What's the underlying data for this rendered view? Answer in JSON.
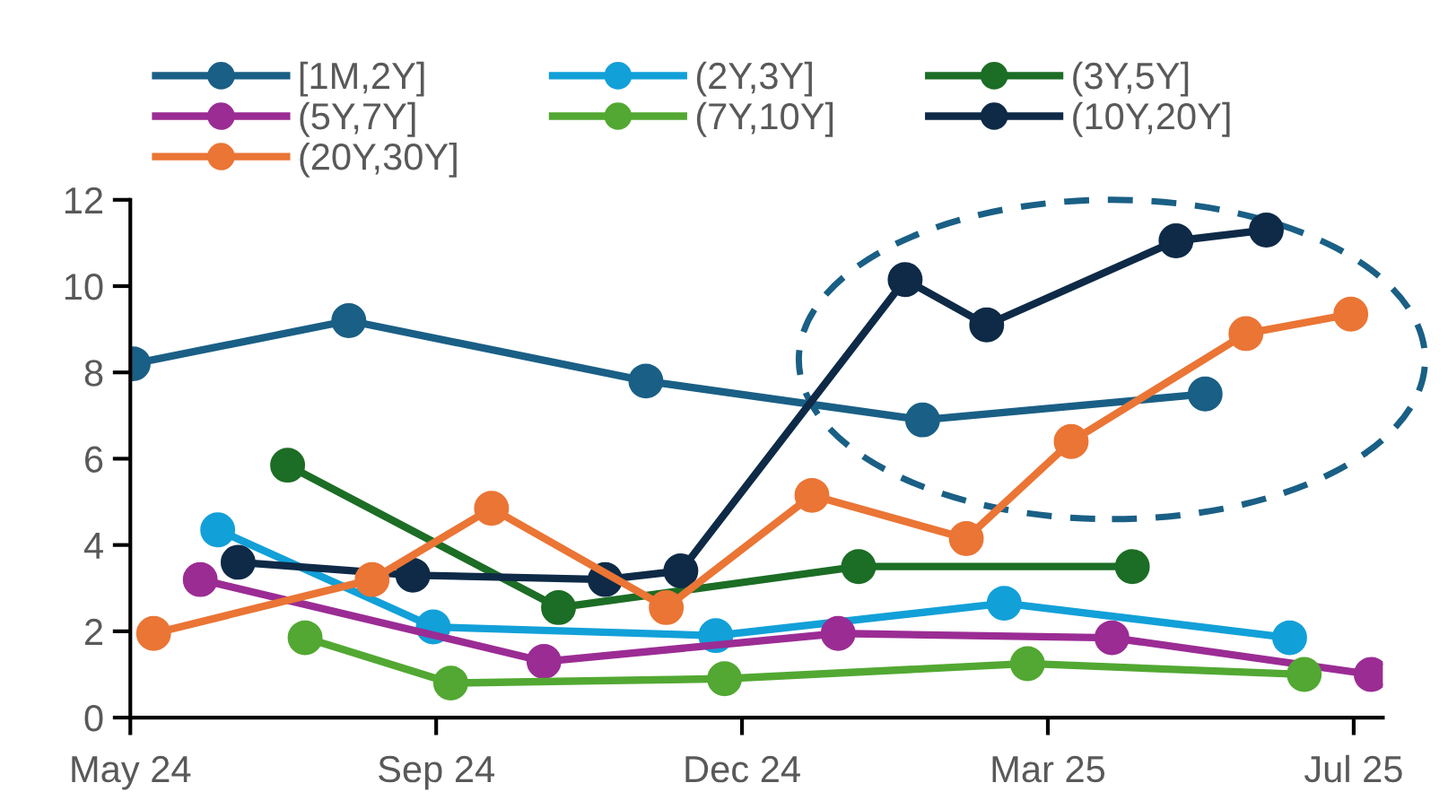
{
  "chart_data": {
    "type": "line",
    "marker": "circle",
    "line_style": "solid",
    "grid": false,
    "legend": "top",
    "xlim": [
      "2024-05-20",
      "2025-07-24"
    ],
    "ylim": [
      0,
      12
    ],
    "xticks": [
      {
        "value": "2024-05-20",
        "label": "May 24"
      },
      {
        "value": "2024-09-02",
        "label": "Sep 24"
      },
      {
        "value": "2024-12-16",
        "label": "Dec 24"
      },
      {
        "value": "2025-03-31",
        "label": "Mar 25"
      },
      {
        "value": "2025-07-14",
        "label": "Jul 25"
      }
    ],
    "yticks": [
      0,
      2,
      4,
      6,
      8,
      10,
      12
    ],
    "series": [
      {
        "name": "[1M,2Y]",
        "color": "#1a5f85",
        "x": [
          "2024-05-21",
          "2024-08-03",
          "2024-11-13",
          "2025-02-16",
          "2025-05-24"
        ],
        "values": [
          8.2,
          9.2,
          7.8,
          6.9,
          7.5
        ]
      },
      {
        "name": "(2Y,3Y]",
        "color": "#12a0d8",
        "x": [
          "2024-06-19",
          "2024-09-01",
          "2024-12-07",
          "2025-03-16",
          "2025-06-22"
        ],
        "values": [
          4.35,
          2.1,
          1.9,
          2.65,
          1.85
        ]
      },
      {
        "name": "(3Y,5Y]",
        "color": "#1c6d25",
        "x": [
          "2024-07-13",
          "2024-10-14",
          "2025-01-25",
          "2025-04-29"
        ],
        "values": [
          5.85,
          2.55,
          3.5,
          3.5
        ]
      },
      {
        "name": "(5Y,7Y]",
        "color": "#9b2c94",
        "x": [
          "2024-06-13",
          "2024-10-09",
          "2025-01-18",
          "2025-04-22",
          "2025-07-20"
        ],
        "values": [
          3.2,
          1.3,
          1.95,
          1.85,
          1.0
        ]
      },
      {
        "name": "(7Y,10Y]",
        "color": "#52a832",
        "x": [
          "2024-07-19",
          "2024-09-07",
          "2024-12-10",
          "2025-03-24",
          "2025-06-27"
        ],
        "values": [
          1.85,
          0.8,
          0.9,
          1.25,
          1.0
        ]
      },
      {
        "name": "(10Y,20Y]",
        "color": "#0e2a47",
        "x": [
          "2024-06-26",
          "2024-08-25",
          "2024-10-30",
          "2024-11-25",
          "2025-02-10",
          "2025-03-10",
          "2025-05-14",
          "2025-06-14"
        ],
        "values": [
          3.6,
          3.3,
          3.2,
          3.4,
          10.15,
          9.1,
          11.05,
          11.3
        ]
      },
      {
        "name": "(20Y,30Y]",
        "color": "#ea7535",
        "x": [
          "2024-05-28",
          "2024-08-11",
          "2024-09-21",
          "2024-11-20",
          "2025-01-09",
          "2025-03-03",
          "2025-04-08",
          "2025-06-07",
          "2025-07-13"
        ],
        "values": [
          1.95,
          3.2,
          4.85,
          2.55,
          5.15,
          4.15,
          6.4,
          8.9,
          9.35
        ]
      }
    ]
  }
}
